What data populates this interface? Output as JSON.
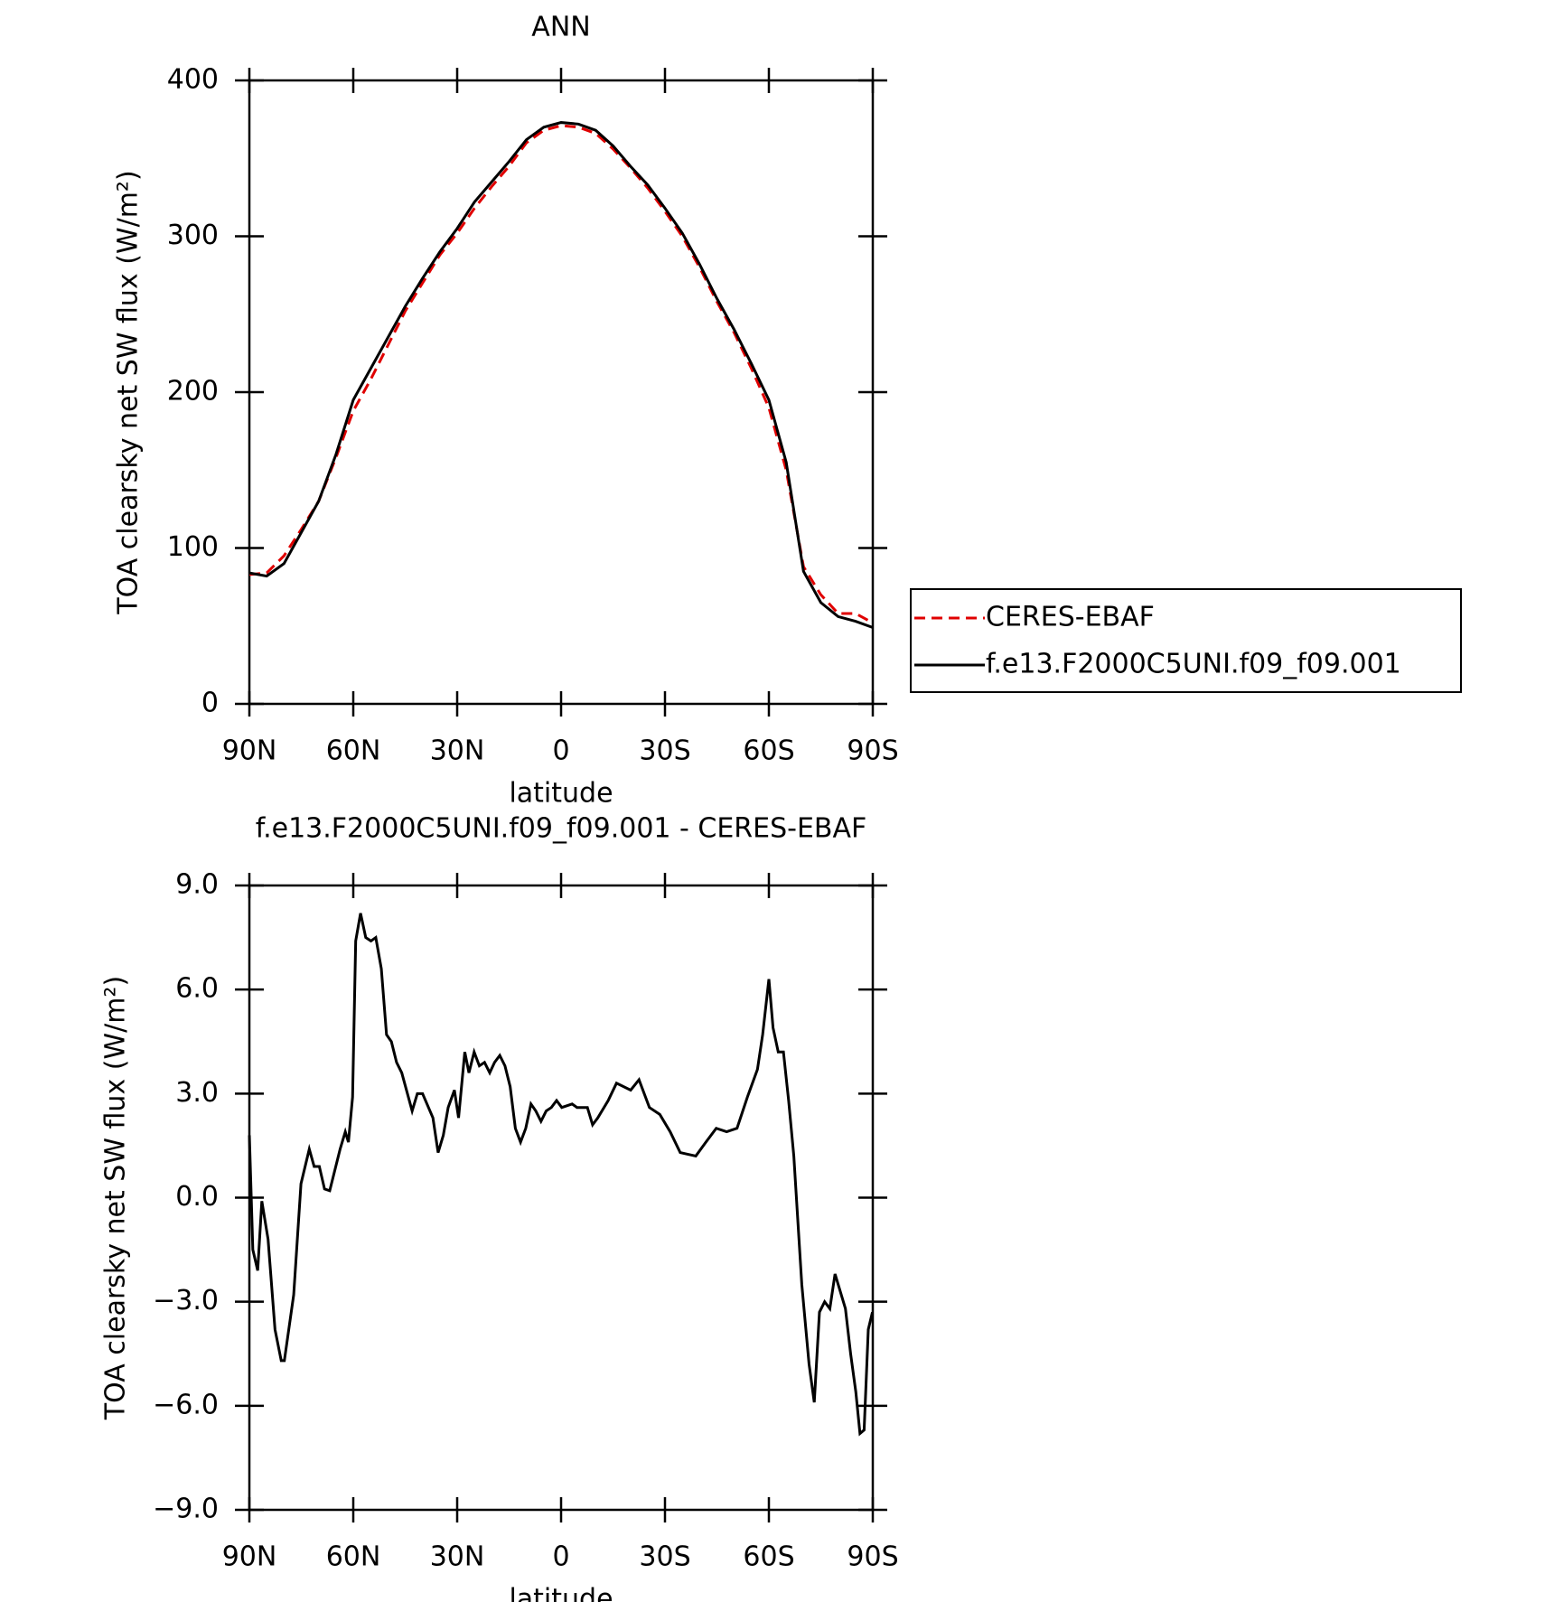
{
  "chart_data": [
    {
      "type": "line",
      "title": "ANN",
      "xlabel": "latitude",
      "ylabel": "TOA clearsky net SW flux (W/m²)",
      "xlim": [
        90,
        -90
      ],
      "xticks": [
        {
          "value": 90,
          "label": "90N"
        },
        {
          "value": 60,
          "label": "60N"
        },
        {
          "value": 30,
          "label": "30N"
        },
        0,
        {
          "value": -30,
          "label": "30S"
        },
        {
          "value": -60,
          "label": "60S"
        },
        {
          "value": -90,
          "label": "90S"
        }
      ],
      "ylim": [
        0,
        400
      ],
      "yticks": [
        0,
        100,
        200,
        300,
        400
      ],
      "legend": "right",
      "x": [
        90,
        85,
        80,
        75,
        70,
        65,
        60,
        55,
        50,
        45,
        40,
        35,
        30,
        25,
        20,
        15,
        10,
        5,
        0,
        -5,
        -10,
        -15,
        -20,
        -25,
        -30,
        -35,
        -40,
        -45,
        -50,
        -55,
        -60,
        -65,
        -70,
        -75,
        -80,
        -85,
        -90
      ],
      "series": [
        {
          "name": "CERES-EBAF",
          "color": "#e00000",
          "dashed": true,
          "values": [
            83,
            84,
            95,
            112,
            130,
            158,
            188,
            208,
            230,
            252,
            270,
            288,
            302,
            318,
            332,
            345,
            360,
            368,
            371,
            370,
            366,
            356,
            344,
            331,
            316,
            300,
            280,
            258,
            238,
            215,
            190,
            150,
            88,
            70,
            58,
            58,
            52
          ]
        },
        {
          "name": "f.e13.F2000C5UNI.f09_f09.001",
          "color": "#000000",
          "dashed": false,
          "values": [
            84,
            82,
            90,
            110,
            130,
            160,
            195,
            215,
            235,
            255,
            273,
            290,
            305,
            322,
            335,
            348,
            362,
            370,
            373,
            372,
            368,
            358,
            345,
            333,
            318,
            302,
            282,
            260,
            240,
            218,
            195,
            155,
            85,
            65,
            56,
            53,
            49
          ]
        }
      ]
    },
    {
      "type": "line",
      "title": "f.e13.F2000C5UNI.f09_f09.001 - CERES-EBAF",
      "xlabel": "latitude",
      "ylabel": "TOA clearsky net SW flux (W/m²)",
      "xlim": [
        90,
        -90
      ],
      "xticks": [
        {
          "value": 90,
          "label": "90N"
        },
        {
          "value": 60,
          "label": "60N"
        },
        {
          "value": 30,
          "label": "30N"
        },
        0,
        {
          "value": -30,
          "label": "30S"
        },
        {
          "value": -60,
          "label": "60S"
        },
        {
          "value": -90,
          "label": "90S"
        }
      ],
      "ylim": [
        -9,
        9
      ],
      "yticks": [
        {
          "value": -9,
          "label": "−9.0"
        },
        {
          "value": -6,
          "label": "−6.0"
        },
        {
          "value": -3,
          "label": "−3.0"
        },
        {
          "value": 0,
          "label": "0.0"
        },
        {
          "value": 3,
          "label": "3.0"
        },
        {
          "value": 6,
          "label": "6.0"
        },
        {
          "value": 9,
          "label": "9.0"
        }
      ],
      "color": "#000000",
      "x": [
        90,
        89,
        87.6,
        86.4,
        84.6,
        82.6,
        80.8,
        79.9,
        77.2,
        75.1,
        72.7,
        71.3,
        69.8,
        68.3,
        66.8,
        63.8,
        62.3,
        61.4,
        60.2,
        59.3,
        57.9,
        56.4,
        54.9,
        53.5,
        51.9,
        50.4,
        49,
        47.5,
        46,
        43,
        41.5,
        40,
        37,
        35.5,
        34,
        32.6,
        30.8,
        29.6,
        27.8,
        26.6,
        25.1,
        23.6,
        22.1,
        20.6,
        19.2,
        17.7,
        16.2,
        14.7,
        13.2,
        11.7,
        10.2,
        8.7,
        7.3,
        5.8,
        4.3,
        2.8,
        1.3,
        -0.2,
        -3.2,
        -4.6,
        -7.6,
        -9.1,
        -10.6,
        -13.6,
        -16,
        -20.1,
        -22.5,
        -25.5,
        -28.5,
        -31.5,
        -34.4,
        -38.9,
        -41.8,
        -44.8,
        -47.8,
        -50.8,
        -53.8,
        -56.7,
        -58.2,
        -60,
        -61.2,
        -62.7,
        -64.2,
        -65.7,
        -67.2,
        -69.5,
        -71.6,
        -73.1,
        -74.6,
        -76.1,
        -77.6,
        -79.1,
        -82.1,
        -83.6,
        -85.1,
        -86.3,
        -87.5,
        -88.7,
        -89.9
      ],
      "values": [
        1.8,
        -1.5,
        -2.1,
        -0.1,
        -1.2,
        -3.8,
        -4.7,
        -4.7,
        -2.8,
        0.4,
        1.4,
        0.9,
        0.9,
        0.25,
        0.2,
        1.4,
        1.9,
        1.6,
        2.9,
        7.4,
        8.2,
        7.5,
        7.4,
        7.5,
        6.6,
        4.7,
        4.5,
        3.9,
        3.6,
        2.5,
        3.0,
        3.0,
        2.3,
        1.3,
        1.8,
        2.6,
        3.1,
        2.3,
        4.2,
        3.6,
        4.2,
        3.8,
        3.9,
        3.6,
        3.9,
        4.1,
        3.8,
        3.2,
        2.0,
        1.6,
        2.0,
        2.7,
        2.5,
        2.2,
        2.5,
        2.6,
        2.8,
        2.6,
        2.7,
        2.6,
        2.6,
        2.1,
        2.3,
        2.8,
        3.3,
        3.1,
        3.4,
        2.6,
        2.4,
        1.9,
        1.3,
        1.2,
        1.6,
        2.0,
        1.9,
        2.0,
        2.9,
        3.7,
        4.7,
        6.3,
        4.9,
        4.2,
        4.2,
        2.8,
        1.2,
        -2.5,
        -4.8,
        -5.9,
        -3.3,
        -3.0,
        -3.2,
        -2.2,
        -3.2,
        -4.5,
        -5.6,
        -6.8,
        -6.7,
        -3.8,
        -3.3
      ]
    }
  ]
}
